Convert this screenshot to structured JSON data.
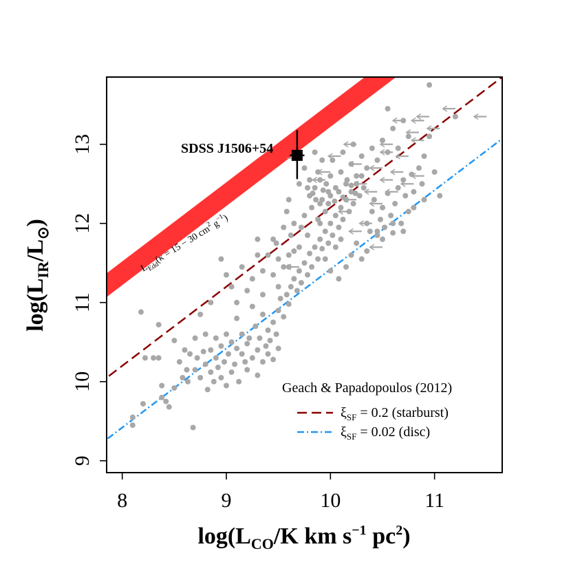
{
  "chart_data": {
    "type": "scatter",
    "title": "",
    "xlabel": {
      "prefix": "log(L",
      "sub": "CO",
      "mid": "/K km s",
      "sup1": "−1",
      "mid2": " pc",
      "sup2": "2",
      "suffix": ")"
    },
    "ylabel": {
      "prefix": "log(L",
      "sub": "IR",
      "mid": "/L",
      "sub2": "⊙",
      "suffix": ")"
    },
    "xlim": [
      7.85,
      11.65
    ],
    "ylim": [
      8.85,
      13.85
    ],
    "xticks": [
      "8",
      "9",
      "10",
      "11"
    ],
    "yticks": [
      "9",
      "10",
      "11",
      "12",
      "13"
    ],
    "grid": false,
    "legend": {
      "placement": "bottom-right",
      "header": "Geach & Papadopoulos (2012)",
      "entries": [
        {
          "symbol": "ξ",
          "sub": "SF",
          "text": " = 0.2 (starburst)",
          "style": "dashed",
          "color": "#8b0000"
        },
        {
          "symbol": "ξ",
          "sub": "SF",
          "text": " = 0.02 (disc)",
          "style": "dash-dot",
          "color": "#2196f3"
        }
      ]
    },
    "lines": [
      {
        "name": "starburst",
        "slope": 1.0,
        "intercept": 2.2,
        "color": "#8b0000",
        "style": "dashed"
      },
      {
        "name": "disc",
        "slope": 1.0,
        "intercept": 1.42,
        "color": "#2196f3",
        "style": "dash-dot"
      }
    ],
    "eddington_band": {
      "slope": 1.0,
      "intercept_low": 3.22,
      "intercept_high": 3.52,
      "color": "#ff3333",
      "label": {
        "prefix": "L",
        "sub": "Edd",
        "text": "(κ = 15 − 30 cm",
        "sup1": "2",
        "mid": " g",
        "sup2": "−1",
        "suffix": ")"
      }
    },
    "highlight": {
      "name": "SDSS J1506+54",
      "x": 9.68,
      "y": 12.86,
      "xerr": [
        0.07,
        0.07
      ],
      "yerr": [
        0.3,
        0.32
      ],
      "upper_limit_arrow_dx": 0.1
    },
    "point_color": "#a8a8a8",
    "points": [
      [
        8.1,
        9.45
      ],
      [
        8.1,
        9.55
      ],
      [
        8.2,
        9.72
      ],
      [
        8.18,
        10.88
      ],
      [
        8.22,
        10.3
      ],
      [
        8.3,
        10.3
      ],
      [
        8.35,
        10.3
      ],
      [
        8.35,
        10.72
      ],
      [
        8.38,
        9.95
      ],
      [
        8.38,
        9.8
      ],
      [
        8.42,
        9.75
      ],
      [
        8.45,
        9.68
      ],
      [
        8.5,
        9.92
      ],
      [
        8.5,
        10.52
      ],
      [
        8.55,
        10.25
      ],
      [
        8.58,
        10.05
      ],
      [
        8.6,
        10.4
      ],
      [
        8.62,
        10.15
      ],
      [
        8.63,
        10.0
      ],
      [
        8.65,
        10.35
      ],
      [
        8.68,
        9.42
      ],
      [
        8.7,
        10.15
      ],
      [
        8.7,
        10.55
      ],
      [
        8.72,
        10.3
      ],
      [
        8.75,
        10.05
      ],
      [
        8.75,
        10.85
      ],
      [
        8.78,
        10.38
      ],
      [
        8.8,
        10.22
      ],
      [
        8.8,
        10.6
      ],
      [
        8.82,
        9.9
      ],
      [
        8.85,
        10.12
      ],
      [
        8.85,
        10.4
      ],
      [
        8.88,
        10.0
      ],
      [
        8.9,
        10.55
      ],
      [
        8.9,
        10.3
      ],
      [
        8.92,
        10.18
      ],
      [
        8.95,
        10.05
      ],
      [
        8.95,
        10.45
      ],
      [
        8.98,
        10.25
      ],
      [
        9.0,
        10.6
      ],
      [
        9.0,
        9.95
      ],
      [
        9.02,
        10.35
      ],
      [
        9.05,
        10.12
      ],
      [
        9.05,
        10.5
      ],
      [
        9.08,
        10.22
      ],
      [
        9.1,
        10.42
      ],
      [
        9.1,
        10.8
      ],
      [
        9.12,
        10.0
      ],
      [
        9.15,
        10.35
      ],
      [
        9.15,
        10.6
      ],
      [
        9.18,
        10.25
      ],
      [
        9.2,
        10.48
      ],
      [
        9.2,
        10.15
      ],
      [
        9.22,
        10.55
      ],
      [
        9.25,
        10.3
      ],
      [
        9.25,
        10.95
      ],
      [
        9.28,
        10.7
      ],
      [
        9.3,
        10.4
      ],
      [
        9.3,
        10.08
      ],
      [
        9.32,
        10.55
      ],
      [
        9.35,
        10.25
      ],
      [
        9.35,
        10.85
      ],
      [
        9.38,
        10.45
      ],
      [
        9.4,
        10.65
      ],
      [
        9.4,
        10.35
      ],
      [
        9.42,
        10.52
      ],
      [
        9.45,
        10.75
      ],
      [
        9.45,
        10.28
      ],
      [
        9.48,
        10.6
      ],
      [
        9.5,
        10.42
      ],
      [
        9.5,
        10.9
      ],
      [
        9.52,
        11.05
      ],
      [
        9.55,
        10.82
      ],
      [
        9.58,
        11.1
      ],
      [
        9.6,
        10.98
      ],
      [
        9.62,
        11.2
      ],
      [
        9.65,
        11.3
      ],
      [
        9.68,
        11.15
      ],
      [
        9.7,
        11.4
      ],
      [
        9.72,
        11.25
      ],
      [
        9.75,
        11.5
      ],
      [
        9.78,
        11.35
      ],
      [
        9.8,
        11.62
      ],
      [
        9.82,
        11.45
      ],
      [
        9.85,
        11.7
      ],
      [
        9.88,
        11.55
      ],
      [
        9.9,
        11.8
      ],
      [
        9.92,
        11.68
      ],
      [
        9.95,
        11.9
      ],
      [
        9.98,
        11.75
      ],
      [
        10.0,
        12.0
      ],
      [
        10.02,
        11.85
      ],
      [
        10.05,
        12.1
      ],
      [
        10.08,
        11.95
      ],
      [
        10.1,
        12.2
      ],
      [
        10.12,
        12.05
      ],
      [
        10.15,
        12.3
      ],
      [
        10.18,
        12.15
      ],
      [
        10.2,
        12.4
      ],
      [
        10.22,
        12.25
      ],
      [
        10.25,
        12.5
      ],
      [
        10.28,
        12.35
      ],
      [
        10.3,
        12.6
      ],
      [
        10.32,
        12.45
      ],
      [
        10.35,
        12.0
      ],
      [
        10.38,
        11.9
      ],
      [
        10.4,
        12.15
      ],
      [
        10.42,
        12.3
      ],
      [
        10.45,
        11.85
      ],
      [
        10.48,
        12.05
      ],
      [
        10.5,
        12.2
      ],
      [
        10.52,
        11.95
      ],
      [
        10.55,
        12.38
      ],
      [
        10.58,
        12.1
      ],
      [
        10.6,
        11.88
      ],
      [
        10.62,
        12.25
      ],
      [
        10.65,
        12.45
      ],
      [
        10.68,
        12.0
      ],
      [
        10.7,
        12.55
      ],
      [
        10.72,
        12.35
      ],
      [
        10.75,
        12.15
      ],
      [
        10.78,
        12.62
      ],
      [
        10.8,
        12.4
      ],
      [
        10.85,
        12.7
      ],
      [
        10.88,
        12.5
      ],
      [
        10.9,
        12.85
      ],
      [
        10.95,
        13.1
      ],
      [
        10.95,
        13.75
      ],
      [
        11.0,
        12.65
      ],
      [
        11.05,
        12.35
      ],
      [
        11.2,
        13.35
      ],
      [
        9.4,
        11.6
      ],
      [
        9.45,
        11.8
      ],
      [
        9.5,
        11.2
      ],
      [
        9.55,
        11.45
      ],
      [
        9.6,
        11.6
      ],
      [
        9.62,
        11.85
      ],
      [
        9.65,
        12.0
      ],
      [
        9.7,
        11.7
      ],
      [
        9.72,
        11.95
      ],
      [
        9.75,
        12.1
      ],
      [
        9.78,
        11.85
      ],
      [
        9.8,
        12.35
      ],
      [
        9.82,
        12.2
      ],
      [
        9.85,
        12.45
      ],
      [
        9.88,
        12.05
      ],
      [
        9.9,
        12.55
      ],
      [
        9.92,
        12.3
      ],
      [
        9.95,
        12.15
      ],
      [
        9.98,
        12.4
      ],
      [
        10.0,
        12.6
      ],
      [
        10.05,
        12.45
      ],
      [
        10.1,
        12.65
      ],
      [
        10.15,
        12.5
      ],
      [
        10.2,
        12.75
      ],
      [
        10.25,
        12.6
      ],
      [
        10.3,
        12.85
      ],
      [
        10.35,
        12.7
      ],
      [
        10.4,
        12.95
      ],
      [
        10.45,
        12.8
      ],
      [
        10.5,
        13.05
      ],
      [
        10.55,
        12.9
      ],
      [
        10.6,
        13.2
      ],
      [
        10.65,
        12.95
      ],
      [
        10.7,
        13.3
      ],
      [
        10.75,
        13.1
      ],
      [
        10.55,
        13.45
      ],
      [
        9.35,
        11.4
      ],
      [
        9.25,
        11.3
      ],
      [
        9.15,
        11.45
      ],
      [
        9.05,
        11.2
      ],
      [
        8.95,
        11.55
      ],
      [
        8.85,
        11.0
      ],
      [
        9.3,
        11.8
      ],
      [
        9.6,
        12.3
      ],
      [
        9.7,
        12.5
      ],
      [
        9.75,
        12.7
      ],
      [
        9.85,
        12.9
      ],
      [
        9.2,
        11.15
      ],
      [
        9.1,
        11.0
      ],
      [
        9.0,
        11.35
      ],
      [
        9.48,
        11.75
      ],
      [
        9.55,
        11.95
      ],
      [
        9.58,
        12.15
      ],
      [
        10.1,
        11.8
      ],
      [
        10.2,
        11.6
      ],
      [
        10.3,
        11.55
      ],
      [
        10.05,
        11.7
      ],
      [
        10.15,
        11.45
      ],
      [
        10.25,
        11.75
      ],
      [
        10.35,
        11.65
      ],
      [
        10.45,
        11.9
      ],
      [
        10.5,
        11.8
      ],
      [
        10.6,
        12.0
      ],
      [
        10.7,
        11.9
      ],
      [
        10.8,
        12.2
      ],
      [
        10.9,
        12.3
      ],
      [
        9.9,
        12.0
      ],
      [
        9.95,
        11.55
      ],
      [
        10.0,
        11.4
      ],
      [
        10.08,
        11.3
      ],
      [
        9.98,
        12.25
      ],
      [
        9.88,
        12.65
      ],
      [
        9.92,
        12.8
      ],
      [
        10.02,
        12.8
      ],
      [
        10.12,
        12.9
      ],
      [
        10.22,
        13.0
      ],
      [
        9.8,
        12.55
      ],
      [
        9.78,
        12.45
      ],
      [
        9.83,
        12.38
      ],
      [
        9.86,
        12.3
      ],
      [
        9.9,
        12.25
      ],
      [
        9.93,
        12.42
      ],
      [
        9.96,
        12.5
      ],
      [
        10.0,
        12.35
      ],
      [
        10.04,
        12.28
      ],
      [
        10.08,
        12.4
      ],
      [
        10.12,
        12.33
      ],
      [
        10.16,
        12.55
      ],
      [
        10.2,
        12.48
      ],
      [
        10.24,
        12.38
      ],
      [
        9.3,
        11.6
      ],
      [
        9.35,
        11.1
      ],
      [
        9.45,
        11.35
      ],
      [
        9.5,
        11.55
      ],
      [
        9.6,
        11.45
      ],
      [
        9.65,
        11.65
      ]
    ],
    "upper_limits": [
      [
        10.72,
        13.3
      ],
      [
        10.9,
        13.3
      ],
      [
        10.95,
        13.35
      ],
      [
        11.2,
        13.45
      ],
      [
        11.5,
        13.35
      ],
      [
        11.05,
        13.2
      ],
      [
        10.85,
        13.15
      ],
      [
        10.6,
        13.0
      ],
      [
        10.9,
        13.05
      ],
      [
        10.6,
        12.9
      ],
      [
        10.75,
        12.85
      ],
      [
        10.3,
        12.75
      ],
      [
        10.5,
        12.7
      ],
      [
        10.7,
        12.65
      ],
      [
        10.9,
        12.6
      ],
      [
        10.35,
        12.5
      ],
      [
        10.6,
        12.55
      ],
      [
        10.8,
        12.5
      ],
      [
        10.45,
        12.4
      ],
      [
        10.65,
        12.4
      ],
      [
        10.25,
        12.3
      ],
      [
        10.5,
        12.25
      ],
      [
        10.2,
        12.15
      ],
      [
        10.4,
        12.0
      ],
      [
        10.3,
        11.9
      ],
      [
        10.5,
        11.7
      ],
      [
        10.25,
        13.0
      ],
      [
        10.1,
        12.85
      ],
      [
        10.0,
        12.65
      ],
      [
        9.95,
        12.55
      ],
      [
        9.7,
        11.45
      ]
    ]
  }
}
